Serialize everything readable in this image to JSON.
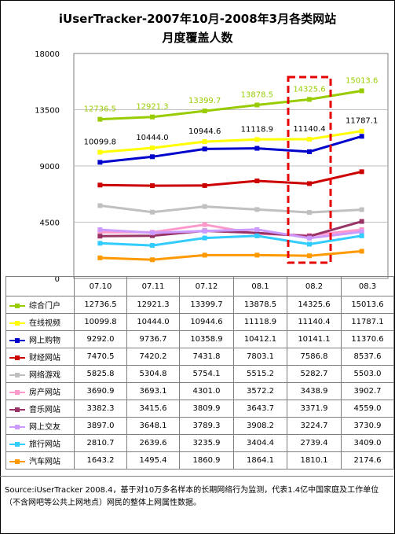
{
  "title_line1": "iUserTracker-2007年10月-2008年3月各类网站",
  "title_line2": "月度覆盖人数",
  "source": "Source:iUserTracker 2008.4，基于对10万多名样本的长期网络行为监测，代表1.4亿中国家庭及工作单位（不含网吧等公共上网地点）网民的整体上网属性数据。",
  "chart_data": {
    "type": "line",
    "title": "iUserTracker-2007年10月-2008年3月各类网站月度覆盖人数",
    "categories": [
      "07.10",
      "07.11",
      "07.12",
      "08.1",
      "08.2",
      "08.3"
    ],
    "ylim": [
      0,
      18000
    ],
    "yticks": [
      0,
      4500,
      9000,
      13500,
      18000
    ],
    "grid": true,
    "legend": "table-bottom",
    "highlight_category": "08.2",
    "series": [
      {
        "name": "综合门户",
        "color": "#99cc00",
        "labeled": true,
        "values": [
          12736.5,
          12921.3,
          13399.7,
          13878.5,
          14325.6,
          15013.6
        ]
      },
      {
        "name": "在线视频",
        "color": "#ffff00",
        "values": [
          10099.8,
          10444.0,
          10944.6,
          11118.9,
          11140.4,
          11787.1
        ]
      },
      {
        "name": "网上购物",
        "color": "#0000cc",
        "labeled": true,
        "values": [
          9292.0,
          9736.7,
          10358.9,
          10412.1,
          10141.1,
          11370.6
        ]
      },
      {
        "name": "财经网站",
        "color": "#cc0000",
        "values": [
          7470.5,
          7420.2,
          7431.8,
          7803.1,
          7586.8,
          8537.6
        ]
      },
      {
        "name": "网络游戏",
        "color": "#c0c0c0",
        "values": [
          5825.8,
          5304.8,
          5754.1,
          5515.2,
          5282.7,
          5503.0
        ]
      },
      {
        "name": "房产网站",
        "color": "#ff99cc",
        "values": [
          3690.9,
          3693.1,
          4301.0,
          3572.2,
          3438.9,
          3902.7
        ]
      },
      {
        "name": "音乐网站",
        "color": "#993366",
        "values": [
          3382.3,
          3415.6,
          3809.9,
          3643.7,
          3371.9,
          4559.0
        ]
      },
      {
        "name": "网上交友",
        "color": "#cc99ff",
        "values": [
          3897.0,
          3648.1,
          3789.3,
          3908.2,
          3224.7,
          3730.9
        ]
      },
      {
        "name": "旅行网站",
        "color": "#33ccff",
        "values": [
          2810.7,
          2639.6,
          3235.9,
          3404.4,
          2739.4,
          3409.0
        ]
      },
      {
        "name": "汽车网站",
        "color": "#ff9900",
        "values": [
          1643.2,
          1495.4,
          1860.9,
          1864.1,
          1810.1,
          2174.6
        ]
      }
    ],
    "data_labels": [
      {
        "series": "综合门户",
        "values": [
          12736.5,
          12921.3,
          13399.7,
          13878.5,
          14325.6,
          15013.6
        ]
      },
      {
        "series": "在线视频",
        "values": [
          10099.8,
          10444.0,
          10944.6,
          11118.9,
          11140.4,
          11787.1
        ]
      }
    ]
  }
}
